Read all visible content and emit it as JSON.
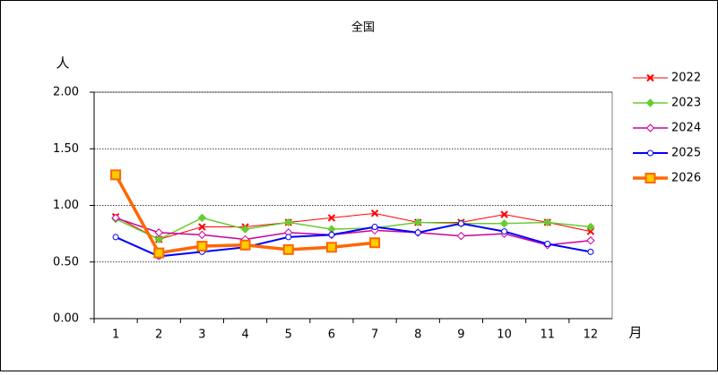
{
  "chart_data": {
    "type": "line",
    "title": "全国",
    "y_label": "人",
    "x_label": "月",
    "categories": [
      "1",
      "2",
      "3",
      "4",
      "5",
      "6",
      "7",
      "8",
      "9",
      "10",
      "11",
      "12"
    ],
    "ylim": [
      0,
      2
    ],
    "yticks": [
      {
        "value": 0,
        "label": "0.00"
      },
      {
        "value": 0.5,
        "label": "0.50"
      },
      {
        "value": 1,
        "label": "1.00"
      },
      {
        "value": 1.5,
        "label": "1.50"
      },
      {
        "value": 2,
        "label": "2.00"
      }
    ],
    "grid": true,
    "legend": "right",
    "series": [
      {
        "name": "2022",
        "color": "#ff0000",
        "marker": "x",
        "line_width": 1,
        "values": [
          0.9,
          0.7,
          0.81,
          0.81,
          0.85,
          0.89,
          0.93,
          0.85,
          0.85,
          0.92,
          0.85,
          0.77
        ]
      },
      {
        "name": "2023",
        "color": "#66cc33",
        "marker": "diamond-filled",
        "line_width": 1.5,
        "values": [
          0.88,
          0.7,
          0.89,
          0.79,
          0.85,
          0.79,
          0.8,
          0.85,
          0.84,
          0.84,
          0.85,
          0.81
        ]
      },
      {
        "name": "2024",
        "color": "#cc0099",
        "marker": "diamond",
        "line_width": 1.5,
        "values": [
          0.89,
          0.76,
          0.74,
          0.7,
          0.76,
          0.74,
          0.78,
          0.76,
          0.73,
          0.75,
          0.65,
          0.69
        ]
      },
      {
        "name": "2025",
        "color": "#0000ff",
        "marker": "circle",
        "line_width": 2,
        "values": [
          0.72,
          0.55,
          0.59,
          0.63,
          0.72,
          0.74,
          0.81,
          0.76,
          0.84,
          0.77,
          0.66,
          0.59
        ]
      },
      {
        "name": "2026",
        "color": "#ff6600",
        "marker": "square",
        "line_width": 3.5,
        "values": [
          1.27,
          0.58,
          0.64,
          0.65,
          0.61,
          0.63,
          0.67,
          null,
          null,
          null,
          null,
          null
        ]
      }
    ]
  }
}
